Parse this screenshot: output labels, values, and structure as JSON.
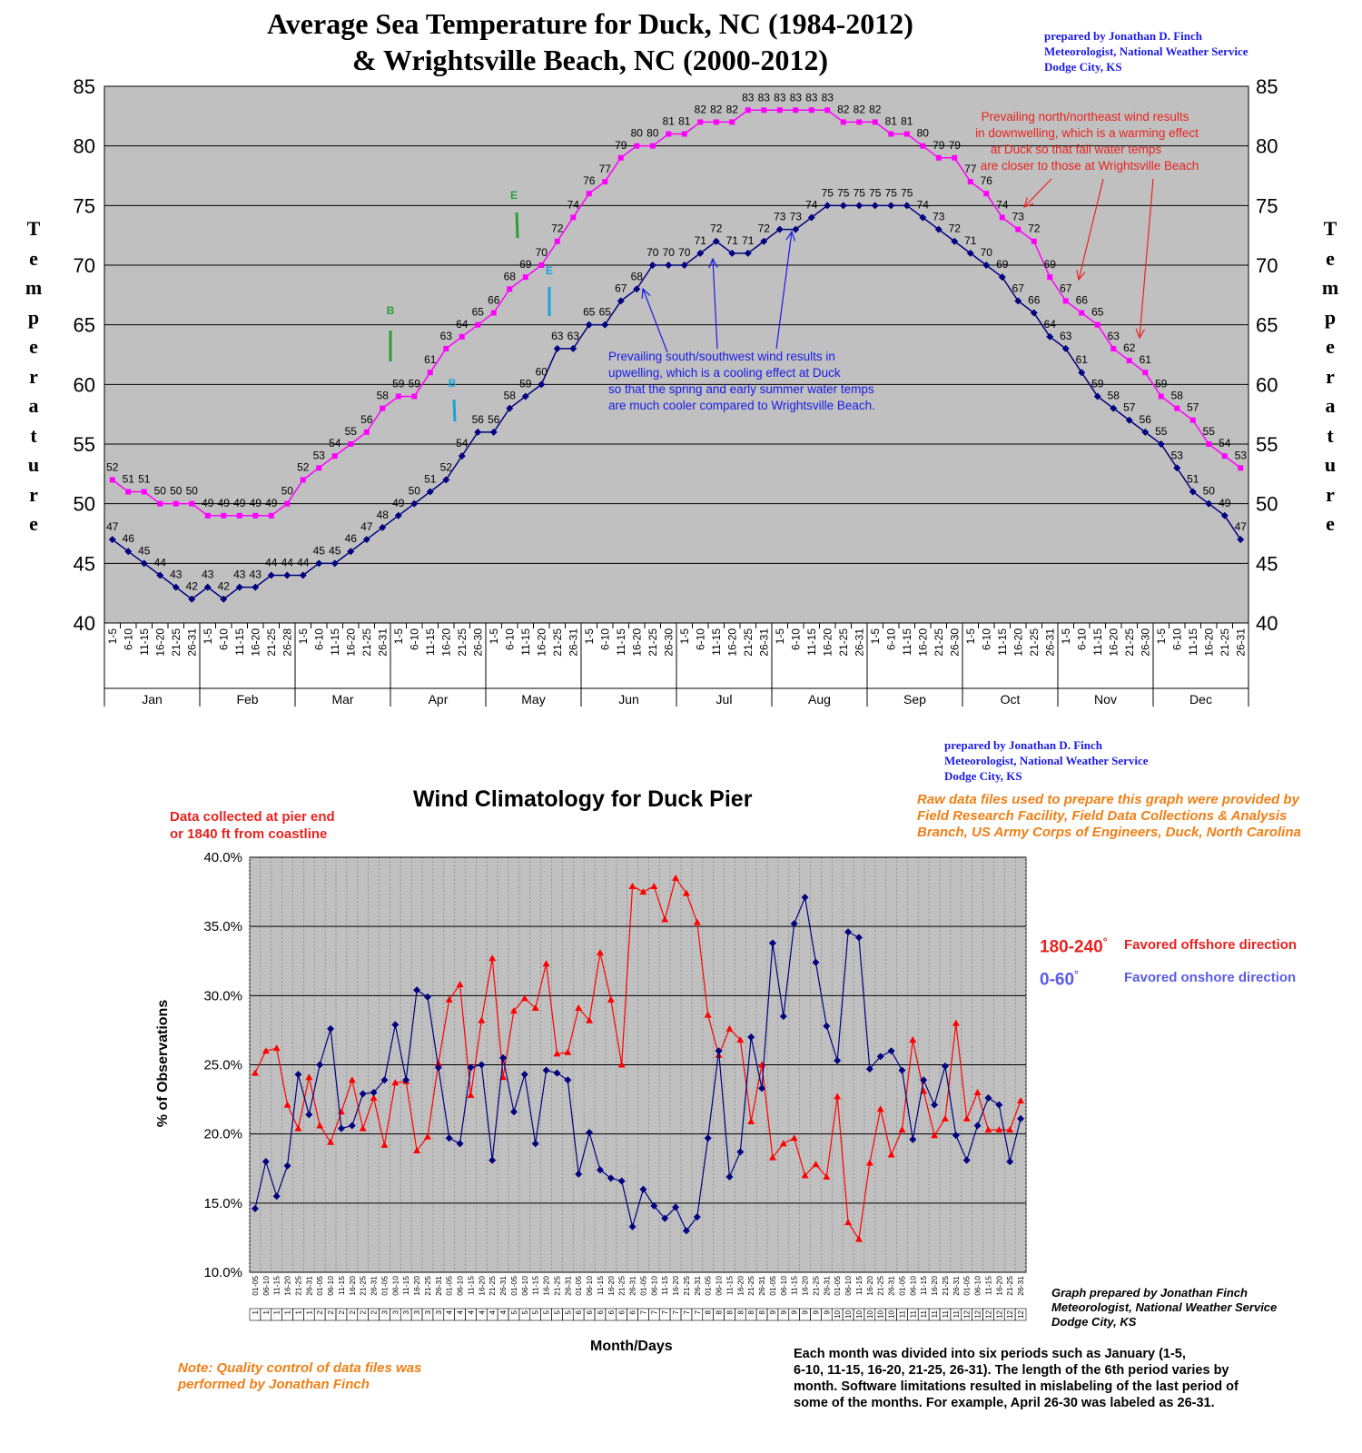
{
  "sea": {
    "title_line1": "Average Sea Temperature for Duck, NC (1984-2012)",
    "title_line2": "& Wrightsville Beach, NC (2000-2012)",
    "credit": [
      "prepared by Jonathan D. Finch",
      "Meteorologist, National Weather Service",
      "Dodge City, KS"
    ],
    "axis_letters": [
      "T",
      "e",
      "m",
      "p",
      "e",
      "r",
      "a",
      "t",
      "u",
      "r",
      "e"
    ],
    "annotation_red": [
      "Prevailing north/northeast wind results",
      "in downwelling, which is a warming effect",
      "at Duck so that fall water temps",
      "are closer to those at Wrightsville Beach"
    ],
    "annotation_blue": [
      "Prevailing south/southwest wind results in",
      "upwelling, which is a cooling effect at Duck",
      "so that the spring and early summer water temps",
      "are much cooler compared to Wrightsville Beach."
    ],
    "marker_b": "B",
    "marker_e": "E",
    "colors": {
      "plot_bg": "#c0c0c0",
      "wrightsville": "#ff00ff",
      "duck": "#000080",
      "marker_green": "#2a9d3a",
      "marker_cyan": "#1aa3d9"
    }
  },
  "wind": {
    "title": "Wind Climatology for Duck Pier",
    "credit": [
      "prepared by Jonathan D. Finch",
      "Meteorologist, National Weather Service",
      "Dodge City, KS"
    ],
    "data_note": [
      "Data  collected at pier end",
      "or 1840 ft from coastline"
    ],
    "raw_note": [
      "Raw data files used to prepare this graph were provided by",
      "Field Research Facility, Field Data Collections & Analysis",
      "Branch, US Army Corps of Engineers, Duck, North Carolina"
    ],
    "legend_offshore_range": "180-240",
    "legend_offshore_text": "Favored offshore direction",
    "legend_onshore_range": "0-60",
    "legend_onshore_text": "Favored onshore direction",
    "degree_symbol": "°",
    "ylabel": "% of Observations",
    "xlabel": "Month/Days",
    "graph_credit": [
      "Graph prepared by Jonathan Finch",
      "Meteorologist, National Weather Service",
      "Dodge City, KS"
    ],
    "qc_note": [
      "Note: Quality control of data files was",
      "performed by Jonathan Finch"
    ],
    "period_note": [
      "Each month was divided into six periods such as January (1-5,",
      "6-10, 11-15, 16-20, 21-25, 26-31). The length of the 6th period  varies by",
      "month. Software limitations resulted in mislabeling of the last period of",
      "some of the months. For example, April 26-30 was labeled as 26-31."
    ],
    "colors": {
      "plot_bg": "#c0c0c0",
      "offshore": "#ff0000",
      "onshore": "#000080"
    }
  },
  "chart_data": [
    {
      "type": "line",
      "title": "Average Sea Temperature for Duck, NC (1984-2012) & Wrightsville Beach, NC (2000-2012)",
      "ylabel": "Temperature",
      "ylim": [
        40,
        85
      ],
      "yticks": [
        40,
        45,
        50,
        55,
        60,
        65,
        70,
        75,
        80,
        85
      ],
      "months": [
        "Jan",
        "Feb",
        "Mar",
        "Apr",
        "May",
        "Jun",
        "Jul",
        "Aug",
        "Sep",
        "Oct",
        "Nov",
        "Dec"
      ],
      "periods": [
        [
          "1-5",
          "6-10",
          "11-15",
          "16-20",
          "21-25",
          "26-31"
        ],
        [
          "1-5",
          "6-10",
          "11-15",
          "16-20",
          "21-25",
          "26-28"
        ],
        [
          "1-5",
          "6-10",
          "11-15",
          "16-20",
          "21-25",
          "26-31"
        ],
        [
          "1-5",
          "6-10",
          "11-15",
          "16-20",
          "21-25",
          "26-30"
        ],
        [
          "1-5",
          "6-10",
          "11-15",
          "16-20",
          "21-25",
          "26-31"
        ],
        [
          "1-5",
          "6-10",
          "11-15",
          "16-20",
          "21-25",
          "26-30"
        ],
        [
          "1-5",
          "6-10",
          "11-15",
          "16-20",
          "21-25",
          "26-31"
        ],
        [
          "1-5",
          "6-10",
          "11-15",
          "16-20",
          "21-25",
          "26-31"
        ],
        [
          "1-5",
          "6-10",
          "11-15",
          "16-20",
          "21-25",
          "26-30"
        ],
        [
          "1-5",
          "6-10",
          "11-15",
          "16-20",
          "21-25",
          "26-31"
        ],
        [
          "1-5",
          "6-10",
          "11-15",
          "16-20",
          "21-25",
          "26-30"
        ],
        [
          "1-5",
          "6-10",
          "11-15",
          "16-20",
          "21-25",
          "26-31"
        ]
      ],
      "grid": true,
      "series": [
        {
          "name": "Wrightsville Beach",
          "values": [
            52,
            51,
            51,
            50,
            50,
            50,
            49,
            49,
            49,
            49,
            49,
            50,
            52,
            53,
            54,
            55,
            56,
            58,
            59,
            59,
            61,
            63,
            64,
            65,
            66,
            68,
            69,
            70,
            72,
            74,
            76,
            77,
            79,
            80,
            80,
            81,
            81,
            82,
            82,
            82,
            83,
            83,
            83,
            83,
            83,
            83,
            82,
            82,
            82,
            81,
            81,
            80,
            79,
            79,
            77,
            76,
            74,
            73,
            72,
            69,
            67,
            66,
            65,
            63,
            62,
            61,
            59,
            58,
            57,
            55,
            54,
            53
          ]
        },
        {
          "name": "Duck",
          "values": [
            47,
            46,
            45,
            44,
            43,
            42,
            43,
            42,
            43,
            43,
            44,
            44,
            44,
            45,
            45,
            46,
            47,
            48,
            49,
            50,
            51,
            52,
            54,
            56,
            56,
            58,
            59,
            60,
            63,
            63,
            65,
            65,
            67,
            68,
            70,
            70,
            70,
            71,
            72,
            71,
            71,
            72,
            73,
            73,
            74,
            75,
            75,
            75,
            75,
            75,
            75,
            74,
            73,
            72,
            71,
            70,
            69,
            67,
            66,
            64,
            63,
            61,
            59,
            58,
            57,
            56,
            55,
            53,
            51,
            50,
            49,
            47
          ]
        }
      ],
      "annotations": [
        "Prevailing north/northeast wind results in downwelling, which is a warming effect at Duck so that fall water temps are closer to those at Wrightsville Beach",
        "Prevailing south/southwest wind results in upwelling, which is a cooling effect at Duck so that the spring and early summer water temps are much cooler compared to Wrightsville Beach."
      ]
    },
    {
      "type": "line",
      "title": "Wind Climatology for Duck Pier",
      "xlabel": "Month/Days",
      "ylabel": "% of Observations",
      "ylim": [
        10,
        40
      ],
      "yticks": [
        "10.0%",
        "15.0%",
        "20.0%",
        "25.0%",
        "30.0%",
        "35.0%",
        "40.0%"
      ],
      "period_labels": [
        "01-05",
        "06-10",
        "11-15",
        "16-20",
        "21-25",
        "26-31"
      ],
      "grid": true,
      "series": [
        {
          "name": "180-240° Favored offshore direction",
          "values": [
            24.4,
            26.0,
            26.2,
            22.1,
            20.4,
            24.1,
            20.6,
            19.4,
            21.6,
            23.9,
            20.4,
            22.6,
            19.2,
            23.7,
            23.8,
            18.8,
            19.8,
            25.1,
            29.7,
            30.8,
            22.8,
            28.2,
            32.7,
            24.1,
            28.9,
            29.8,
            29.1,
            32.3,
            25.8,
            25.9,
            29.1,
            28.2,
            33.1,
            29.7,
            25.0,
            37.9,
            37.5,
            37.9,
            35.5,
            38.5,
            37.4,
            35.3,
            28.6,
            25.7,
            27.6,
            26.8,
            20.9,
            25.0,
            18.3,
            19.3,
            19.7,
            17.0,
            17.8,
            16.9,
            22.7,
            13.6,
            12.4,
            17.9,
            21.8,
            18.5,
            20.3,
            26.8,
            23.1,
            19.9,
            21.1,
            28.0,
            21.1,
            23.0,
            20.3,
            20.3,
            20.3,
            22.4
          ]
        },
        {
          "name": "0-60° Favored onshore direction",
          "values": [
            14.6,
            18.0,
            15.5,
            17.7,
            24.3,
            21.4,
            25.0,
            27.6,
            20.4,
            20.6,
            22.9,
            23.0,
            23.9,
            27.9,
            23.9,
            30.4,
            29.9,
            24.8,
            19.7,
            19.3,
            24.8,
            25.0,
            18.1,
            25.5,
            21.6,
            24.3,
            19.3,
            24.6,
            24.4,
            23.9,
            17.1,
            20.1,
            17.4,
            16.8,
            16.6,
            13.3,
            16.0,
            14.8,
            13.9,
            14.7,
            13.0,
            14.0,
            19.7,
            26.0,
            16.9,
            18.7,
            27.0,
            23.3,
            33.8,
            28.5,
            35.2,
            37.1,
            32.4,
            27.8,
            25.3,
            34.6,
            34.2,
            24.7,
            25.6,
            26.0,
            24.6,
            19.6,
            23.9,
            22.1,
            24.9,
            19.9,
            18.1,
            20.6,
            22.6,
            22.1,
            18.0,
            21.1
          ]
        }
      ]
    }
  ]
}
